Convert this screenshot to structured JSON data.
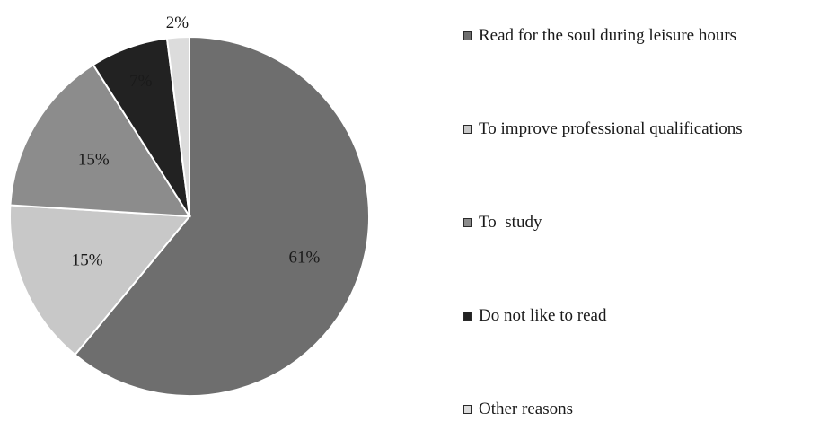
{
  "chart_data": {
    "type": "pie",
    "title": "",
    "slices": [
      {
        "label": "Read for the soul during leisure hours",
        "value": 61,
        "display": "61%",
        "color": "#6e6e6e"
      },
      {
        "label": "To improve professional qualifications",
        "value": 15,
        "display": "15%",
        "color": "#c8c8c8"
      },
      {
        "label": "To  study",
        "value": 15,
        "display": "15%",
        "color": "#8c8c8c"
      },
      {
        "label": "Do not like to read",
        "value": 7,
        "display": "7%",
        "color": "#222222"
      },
      {
        "label": "Other reasons",
        "value": 2,
        "display": "2%",
        "color": "#dcdcdc"
      }
    ],
    "legend_position": "right"
  }
}
